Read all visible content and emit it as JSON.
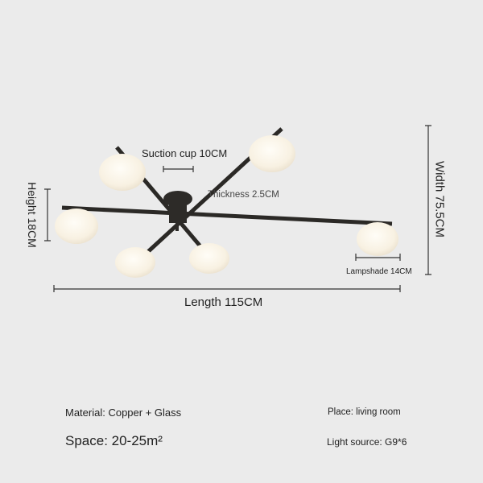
{
  "dimensions": {
    "suction_cup": "Suction cup 10CM",
    "thickness": "Thickness 2.5CM",
    "height": "Height 18CM",
    "width": "Width 75.5CM",
    "lampshade": "Lampshade 14CM",
    "length": "Length 115CM"
  },
  "specs": {
    "material": "Material: Copper + Glass",
    "space": "Space: 20-25m²",
    "place": "Place: living room",
    "light_source": "Light source: G9*6"
  },
  "colors": {
    "background": "#ebebeb",
    "frame": "#2b2926",
    "globe": "#fbf6ec"
  }
}
